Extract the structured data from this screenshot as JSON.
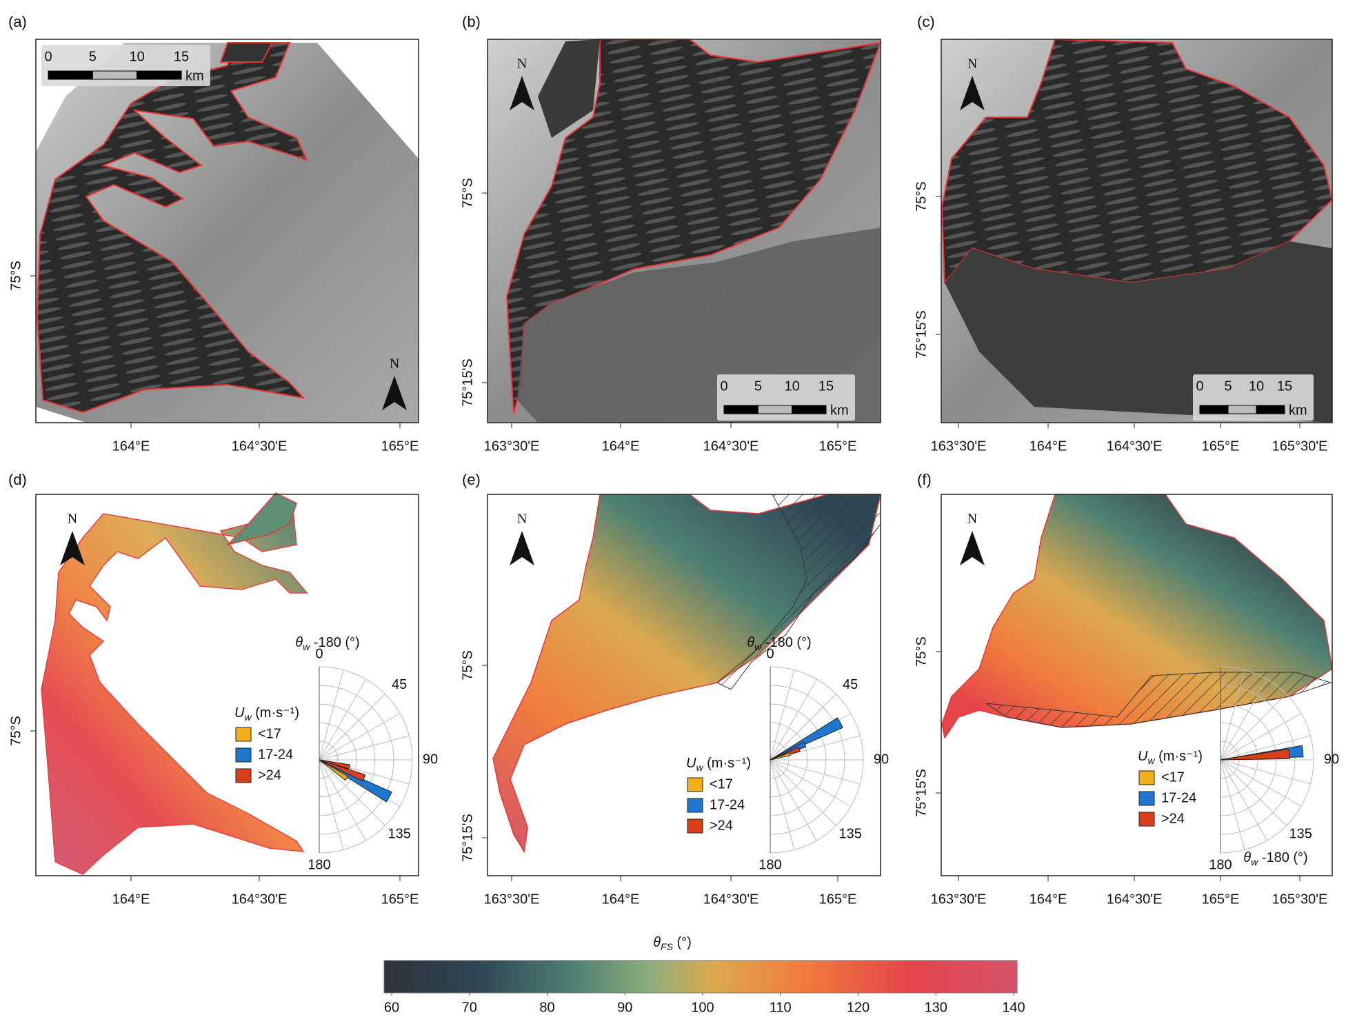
{
  "panels": [
    {
      "label": "(a)",
      "x_ticks": [
        "164°E",
        "164°30'E",
        "165°E"
      ],
      "y_ticks": [
        "75°S"
      ],
      "north": "N",
      "scale_bar": {
        "ticks": [
          "0",
          "5",
          "10",
          "15"
        ],
        "unit": "km"
      }
    },
    {
      "label": "(b)",
      "x_ticks": [
        "163°30'E",
        "164°E",
        "164°30'E",
        "165°E"
      ],
      "y_ticks": [
        "75°S",
        "75°15'S"
      ],
      "north": "N",
      "scale_bar": {
        "ticks": [
          "0",
          "5",
          "10",
          "15"
        ],
        "unit": "km"
      }
    },
    {
      "label": "(c)",
      "x_ticks": [
        "163°30'E",
        "164°E",
        "164°30'E",
        "165°E",
        "165°30'E"
      ],
      "y_ticks": [
        "75°S",
        "75°15'S"
      ],
      "north": "N",
      "scale_bar": {
        "ticks": [
          "0",
          "5",
          "10",
          "15"
        ],
        "unit": "km"
      }
    },
    {
      "label": "(d)",
      "x_ticks": [
        "164°E",
        "164°30'E",
        "165°E"
      ],
      "y_ticks": [
        "75°S"
      ],
      "north": "N",
      "legend": {
        "symbol": "U",
        "subscript": "w",
        "unit": " (m·s⁻¹)",
        "items": [
          {
            "label": "<17",
            "color": "#f0ad1c"
          },
          {
            "label": "17-24",
            "color": "#1f77d0"
          },
          {
            "label": ">24",
            "color": "#d9401a"
          }
        ]
      },
      "rose": {
        "symbol": "θ",
        "subscript": "w",
        "rest": " -180 (°)",
        "labels": [
          "0",
          "45",
          "90",
          "135",
          "180"
        ]
      }
    },
    {
      "label": "(e)",
      "x_ticks": [
        "163°30'E",
        "164°E",
        "164°30'E",
        "165°E"
      ],
      "y_ticks": [
        "75°S",
        "75°15'S"
      ],
      "north": "N",
      "legend": {
        "symbol": "U",
        "subscript": "w",
        "unit": " (m·s⁻¹)",
        "items": [
          {
            "label": "<17",
            "color": "#f0ad1c"
          },
          {
            "label": "17-24",
            "color": "#1f77d0"
          },
          {
            "label": ">24",
            "color": "#d9401a"
          }
        ]
      },
      "rose": {
        "symbol": "θ",
        "subscript": "w",
        "rest": " -180 (°)",
        "labels": [
          "0",
          "45",
          "90",
          "135",
          "180"
        ]
      }
    },
    {
      "label": "(f)",
      "x_ticks": [
        "163°30'E",
        "164°E",
        "164°30'E",
        "165°E",
        "165°30'E"
      ],
      "y_ticks": [
        "75°S",
        "75°15'S"
      ],
      "north": "N",
      "legend": {
        "symbol": "U",
        "subscript": "w",
        "unit": " (m·s⁻¹)",
        "items": [
          {
            "label": "<17",
            "color": "#f0ad1c"
          },
          {
            "label": "17-24",
            "color": "#1f77d0"
          },
          {
            "label": ">24",
            "color": "#d9401a"
          }
        ]
      },
      "rose": {
        "symbol": "θ",
        "subscript": "w",
        "rest": " -180 (°)",
        "labels": [
          "90",
          "135",
          "180"
        ]
      }
    }
  ],
  "colorbar": {
    "symbol": "θ",
    "subscript": "FS",
    "unit": " (°)",
    "ticks": [
      60,
      70,
      80,
      90,
      100,
      110,
      120,
      130,
      140
    ]
  }
}
